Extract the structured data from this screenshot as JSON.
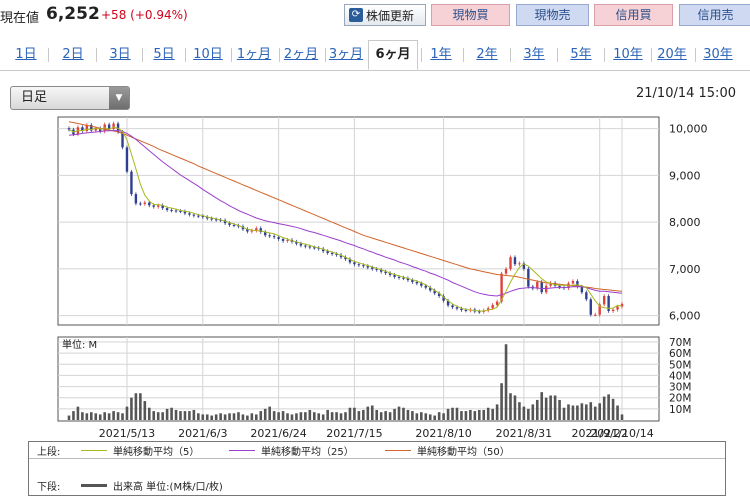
{
  "header": {
    "price_label": "現在値",
    "price": "6,252",
    "change": "+58 (+0.94%)",
    "refresh_label": "株価更新",
    "buttons": [
      "現物買",
      "現物売",
      "信用買",
      "信用売"
    ]
  },
  "tabs": [
    "1日",
    "2日",
    "3日",
    "5日",
    "10日",
    "1ヶ月",
    "2ヶ月",
    "3ヶ月",
    "6ヶ月",
    "1年",
    "2年",
    "3年",
    "5年",
    "10年",
    "20年",
    "30年"
  ],
  "active_tab": "6ヶ月",
  "period_select": {
    "value": "日足"
  },
  "timestamp": "21/10/14 15:00",
  "colors": {
    "up": "#e0413c",
    "down": "#2f3f8f",
    "ma5": "#a8b820",
    "ma25": "#9b3fcf",
    "ma50": "#d2642a",
    "volume": "#555555"
  },
  "chart_data": [
    {
      "type": "candlestick",
      "ylabel": "",
      "y_ticks": [
        "10,000",
        "9,000",
        "8,000",
        "7,000",
        "6,000"
      ],
      "ylim": [
        5800,
        10250
      ],
      "x_ticks": [
        "2021/5/13",
        "2021/6/3",
        "2021/6/24",
        "2021/7/15",
        "2021/8/10",
        "2021/8/31",
        "2021/9/22",
        "2021/10/14"
      ],
      "grid": true,
      "close": [
        9980,
        9880,
        10030,
        9950,
        10080,
        9960,
        10010,
        9940,
        10090,
        9990,
        10110,
        9930,
        9600,
        9080,
        8600,
        8400,
        8390,
        8420,
        8360,
        8330,
        8360,
        8300,
        8260,
        8250,
        8240,
        8230,
        8190,
        8160,
        8140,
        8130,
        8110,
        8080,
        8060,
        8050,
        8040,
        7980,
        7940,
        7930,
        7910,
        7850,
        7800,
        7820,
        7870,
        7790,
        7720,
        7700,
        7680,
        7640,
        7600,
        7620,
        7580,
        7540,
        7500,
        7480,
        7460,
        7450,
        7430,
        7380,
        7340,
        7320,
        7300,
        7250,
        7210,
        7140,
        7100,
        7080,
        7060,
        7030,
        7000,
        6980,
        6940,
        6910,
        6870,
        6830,
        6810,
        6800,
        6760,
        6720,
        6690,
        6640,
        6600,
        6540,
        6480,
        6420,
        6320,
        6220,
        6180,
        6150,
        6120,
        6110,
        6130,
        6090,
        6080,
        6110,
        6160,
        6230,
        6300,
        6900,
        7000,
        7250,
        7100,
        7120,
        7000,
        6620,
        6580,
        6720,
        6500,
        6640,
        6700,
        6640,
        6610,
        6590,
        6690,
        6740,
        6620,
        6500,
        6350,
        6020,
        6020,
        6240,
        6420,
        6100,
        6130,
        6194,
        6252
      ],
      "ma5": [
        9980,
        9930,
        9960,
        9960,
        9990,
        9980,
        10010,
        9990,
        10020,
        9990,
        10030,
        10010,
        9940,
        9760,
        9460,
        9140,
        8810,
        8580,
        8450,
        8380,
        8370,
        8360,
        8320,
        8300,
        8280,
        8250,
        8230,
        8220,
        8190,
        8160,
        8140,
        8110,
        8090,
        8070,
        8050,
        8020,
        7990,
        7960,
        7930,
        7890,
        7850,
        7830,
        7820,
        7810,
        7790,
        7770,
        7750,
        7710,
        7670,
        7640,
        7600,
        7580,
        7550,
        7530,
        7500,
        7470,
        7450,
        7420,
        7390,
        7360,
        7330,
        7290,
        7250,
        7200,
        7160,
        7130,
        7100,
        7070,
        7040,
        7010,
        6980,
        6950,
        6910,
        6880,
        6850,
        6820,
        6800,
        6770,
        6740,
        6700,
        6660,
        6600,
        6540,
        6480,
        6400,
        6320,
        6250,
        6200,
        6160,
        6130,
        6120,
        6110,
        6100,
        6100,
        6120,
        6140,
        6180,
        6340,
        6520,
        6720,
        6890,
        7030,
        7110,
        7060,
        6970,
        6880,
        6790,
        6720,
        6690,
        6660,
        6650,
        6650,
        6640,
        6650,
        6660,
        6640,
        6600,
        6460,
        6320,
        6200,
        6170,
        6160,
        6160,
        6220,
        6200
      ],
      "ma25": [
        9860,
        9870,
        9880,
        9900,
        9910,
        9920,
        9930,
        9940,
        9950,
        9955,
        9960,
        9960,
        9940,
        9900,
        9840,
        9770,
        9690,
        9610,
        9530,
        9450,
        9370,
        9290,
        9220,
        9150,
        9080,
        9010,
        8950,
        8890,
        8830,
        8770,
        8700,
        8640,
        8580,
        8520,
        8460,
        8410,
        8350,
        8300,
        8250,
        8210,
        8170,
        8130,
        8090,
        8060,
        8030,
        8010,
        7990,
        7970,
        7950,
        7930,
        7910,
        7890,
        7860,
        7830,
        7800,
        7780,
        7750,
        7720,
        7690,
        7660,
        7630,
        7600,
        7560,
        7530,
        7500,
        7460,
        7430,
        7390,
        7360,
        7320,
        7290,
        7250,
        7220,
        7190,
        7150,
        7120,
        7090,
        7050,
        7020,
        6980,
        6950,
        6910,
        6880,
        6840,
        6800,
        6760,
        6710,
        6670,
        6630,
        6590,
        6550,
        6510,
        6480,
        6460,
        6440,
        6430,
        6420,
        6450,
        6480,
        6520,
        6550,
        6580,
        6590,
        6600,
        6600,
        6590,
        6580,
        6580,
        6590,
        6600,
        6600,
        6600,
        6610,
        6620,
        6620,
        6620,
        6600,
        6570,
        6540,
        6520,
        6520,
        6510,
        6500,
        6490,
        6480
      ],
      "ma50": [
        10150,
        10130,
        10110,
        10090,
        10070,
        10050,
        10030,
        10010,
        9990,
        9970,
        9950,
        9930,
        9900,
        9860,
        9820,
        9780,
        9740,
        9700,
        9660,
        9620,
        9570,
        9530,
        9490,
        9450,
        9410,
        9370,
        9330,
        9290,
        9250,
        9200,
        9160,
        9120,
        9080,
        9040,
        9000,
        8960,
        8920,
        8880,
        8840,
        8800,
        8760,
        8720,
        8680,
        8640,
        8600,
        8560,
        8520,
        8480,
        8440,
        8400,
        8360,
        8320,
        8280,
        8240,
        8200,
        8160,
        8120,
        8080,
        8040,
        8000,
        7960,
        7920,
        7880,
        7840,
        7800,
        7760,
        7720,
        7690,
        7660,
        7630,
        7600,
        7570,
        7540,
        7510,
        7480,
        7450,
        7420,
        7390,
        7360,
        7330,
        7300,
        7270,
        7240,
        7210,
        7180,
        7150,
        7120,
        7090,
        7060,
        7030,
        7000,
        6980,
        6960,
        6940,
        6920,
        6900,
        6880,
        6870,
        6860,
        6850,
        6840,
        6820,
        6800,
        6780,
        6760,
        6740,
        6720,
        6700,
        6690,
        6680,
        6670,
        6660,
        6650,
        6640,
        6630,
        6620,
        6610,
        6600,
        6580,
        6570,
        6560,
        6550,
        6540,
        6530,
        6520
      ]
    },
    {
      "type": "bar",
      "ylabel": "単位: M",
      "y_ticks": [
        "70M",
        "60M",
        "50M",
        "40M",
        "30M",
        "20M",
        "10M"
      ],
      "ylim": [
        0,
        70
      ],
      "grid": true,
      "values": [
        4,
        8,
        12,
        7,
        6,
        7,
        6,
        5,
        7,
        6,
        8,
        7,
        6,
        12,
        20,
        24,
        24,
        17,
        11,
        8,
        7,
        7,
        10,
        11,
        9,
        8,
        8,
        8,
        9,
        6,
        5,
        5,
        4,
        5,
        6,
        5,
        6,
        6,
        7,
        5,
        4,
        6,
        5,
        8,
        10,
        12,
        8,
        7,
        8,
        6,
        5,
        6,
        7,
        7,
        9,
        7,
        6,
        5,
        9,
        7,
        7,
        6,
        7,
        11,
        11,
        8,
        9,
        12,
        13,
        9,
        7,
        8,
        7,
        10,
        12,
        11,
        9,
        8,
        6,
        7,
        6,
        5,
        4,
        7,
        6,
        10,
        11,
        11,
        8,
        8,
        9,
        8,
        9,
        9,
        11,
        10,
        14,
        33,
        68,
        24,
        22,
        16,
        12,
        10,
        14,
        18,
        25,
        20,
        22,
        22,
        18,
        11,
        14,
        13,
        13,
        15,
        14,
        16,
        12,
        15,
        21,
        23,
        19,
        13,
        5
      ]
    }
  ],
  "legend": {
    "top_label": "上段:",
    "ma5_label": "単純移動平均（5）",
    "ma25_label": "単純移動平均（25）",
    "ma50_label": "単純移動平均（50）",
    "bottom_label": "下段:",
    "volume_label": "出来高 単位:(M株/口/枚)"
  }
}
